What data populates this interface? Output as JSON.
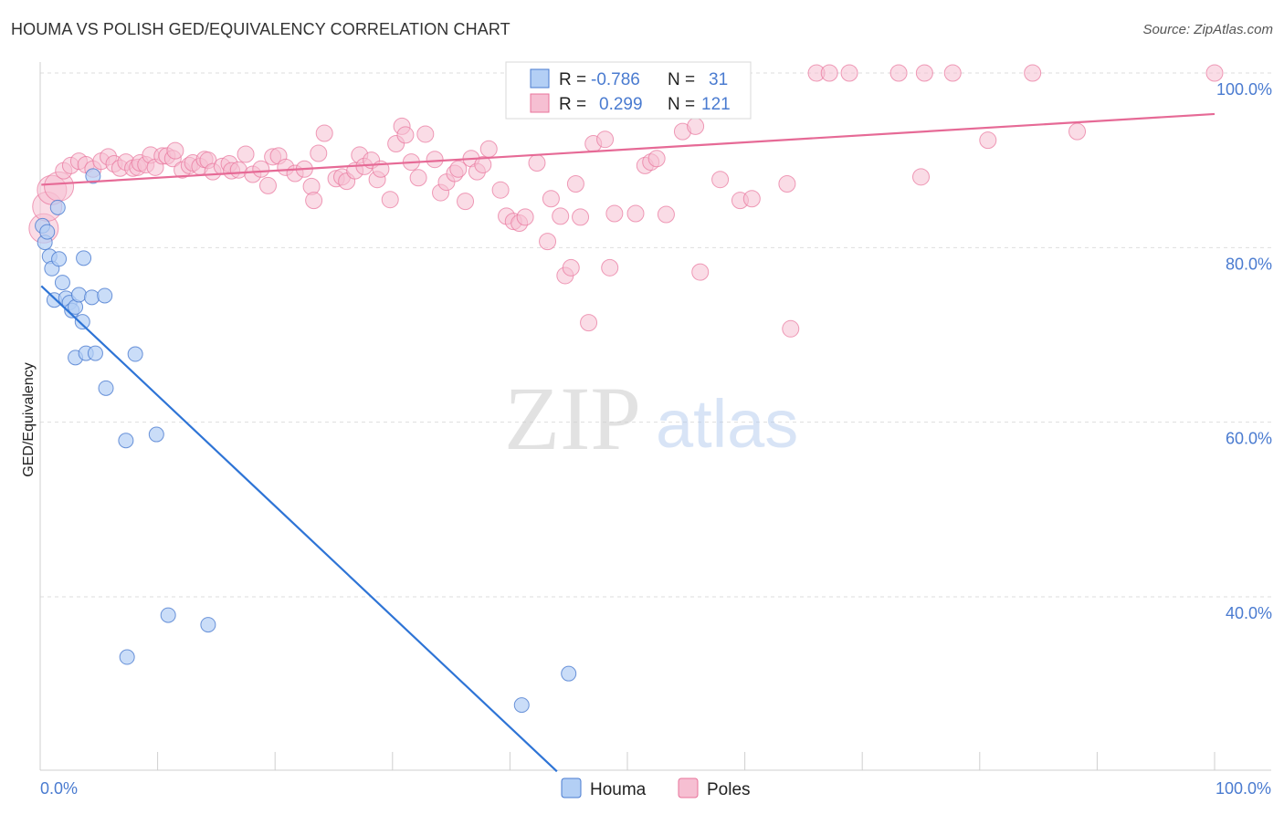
{
  "title": "HOUMA VS POLISH GED/EQUIVALENCY CORRELATION CHART",
  "source": "Source: ZipAtlas.com",
  "watermark": {
    "zip": "ZIP",
    "atlas": "atlas"
  },
  "colors": {
    "blue": "#4a7bd0",
    "blue_fill": "#b3cff5",
    "blue_line": "#2e74d6",
    "pink": "#e8739b",
    "pink_fill": "#f6bfd2",
    "pink_line": "#e66a96"
  },
  "legend_box": {
    "rows": [
      {
        "r_label": "R =",
        "r_value": "-0.786",
        "n_label": "N =",
        "n_value": "31"
      },
      {
        "r_label": "R =",
        "r_value": "0.299",
        "n_label": "N =",
        "n_value": "121"
      }
    ]
  },
  "bottom_legend": {
    "houma": "Houma",
    "poles": "Poles"
  },
  "chart_data": {
    "type": "scatter",
    "ylabel": "GED/Equivalency",
    "xlabel": "",
    "xlim": [
      0,
      100
    ],
    "ylim": [
      20,
      102
    ],
    "x_tick_labels": [
      "0.0%",
      "100.0%"
    ],
    "y_ticks": [
      {
        "value": 100,
        "label": "100.0%"
      },
      {
        "value": 80,
        "label": "80.0%"
      },
      {
        "value": 60,
        "label": "60.0%"
      },
      {
        "value": 40,
        "label": "40.0%"
      }
    ],
    "grid": "dashed horizontal",
    "legend_position": "top-center",
    "series": [
      {
        "name": "Houma",
        "color": "#4a7bd0",
        "trend": {
          "x": [
            0.1,
            44
          ],
          "y": [
            75.6,
            20
          ]
        },
        "points": [
          [
            0.2,
            82.5
          ],
          [
            0.4,
            80.6
          ],
          [
            0.6,
            81.8
          ],
          [
            0.8,
            79.0
          ],
          [
            1.0,
            77.6
          ],
          [
            1.2,
            74.0
          ],
          [
            1.5,
            84.6
          ],
          [
            1.6,
            78.7
          ],
          [
            1.9,
            76.0
          ],
          [
            2.2,
            74.2
          ],
          [
            2.5,
            73.7
          ],
          [
            2.7,
            72.8
          ],
          [
            3.0,
            73.2
          ],
          [
            3.3,
            74.6
          ],
          [
            3.6,
            71.5
          ],
          [
            3.7,
            78.8
          ],
          [
            3.0,
            67.4
          ],
          [
            3.9,
            67.9
          ],
          [
            4.4,
            74.3
          ],
          [
            4.5,
            88.2
          ],
          [
            4.7,
            67.9
          ],
          [
            5.5,
            74.5
          ],
          [
            5.6,
            63.9
          ],
          [
            7.3,
            57.9
          ],
          [
            8.1,
            67.8
          ],
          [
            9.9,
            58.6
          ],
          [
            10.9,
            37.9
          ],
          [
            7.4,
            33.1
          ],
          [
            14.3,
            36.8
          ],
          [
            41.0,
            27.6
          ],
          [
            45.0,
            31.2
          ]
        ]
      },
      {
        "name": "Poles",
        "color": "#e8739b",
        "trend": {
          "x": [
            0.1,
            100
          ],
          "y": [
            87.2,
            95.3
          ]
        },
        "points": [
          [
            0.3,
            82.2
          ],
          [
            0.6,
            84.7
          ],
          [
            1.0,
            86.6
          ],
          [
            1.6,
            87.0
          ],
          [
            2.0,
            88.8
          ],
          [
            2.6,
            89.4
          ],
          [
            3.3,
            89.9
          ],
          [
            3.9,
            89.5
          ],
          [
            4.5,
            89.0
          ],
          [
            5.2,
            89.9
          ],
          [
            5.8,
            90.4
          ],
          [
            6.3,
            89.6
          ],
          [
            6.8,
            89.1
          ],
          [
            7.3,
            89.8
          ],
          [
            7.9,
            89.1
          ],
          [
            8.3,
            89.2
          ],
          [
            8.5,
            89.7
          ],
          [
            9.0,
            89.5
          ],
          [
            9.4,
            90.6
          ],
          [
            9.8,
            89.2
          ],
          [
            10.4,
            90.5
          ],
          [
            10.8,
            90.5
          ],
          [
            11.3,
            90.2
          ],
          [
            11.5,
            91.1
          ],
          [
            12.1,
            88.9
          ],
          [
            12.7,
            89.4
          ],
          [
            13.0,
            89.7
          ],
          [
            13.6,
            89.3
          ],
          [
            14.0,
            90.1
          ],
          [
            14.3,
            90.0
          ],
          [
            14.7,
            88.7
          ],
          [
            15.5,
            89.3
          ],
          [
            16.1,
            89.6
          ],
          [
            16.3,
            88.8
          ],
          [
            16.9,
            88.9
          ],
          [
            17.5,
            90.7
          ],
          [
            18.1,
            88.4
          ],
          [
            18.8,
            89.0
          ],
          [
            19.4,
            87.1
          ],
          [
            19.8,
            90.4
          ],
          [
            20.3,
            90.5
          ],
          [
            20.9,
            89.2
          ],
          [
            21.7,
            88.5
          ],
          [
            22.5,
            89.0
          ],
          [
            23.1,
            87.0
          ],
          [
            23.3,
            85.4
          ],
          [
            23.7,
            90.8
          ],
          [
            24.2,
            93.1
          ],
          [
            25.2,
            87.9
          ],
          [
            25.7,
            88.1
          ],
          [
            26.1,
            87.6
          ],
          [
            26.8,
            88.8
          ],
          [
            27.2,
            90.6
          ],
          [
            27.6,
            89.3
          ],
          [
            28.2,
            90.0
          ],
          [
            28.7,
            87.8
          ],
          [
            29.0,
            89.0
          ],
          [
            29.8,
            85.5
          ],
          [
            30.3,
            91.9
          ],
          [
            30.8,
            93.9
          ],
          [
            31.1,
            92.9
          ],
          [
            31.6,
            89.8
          ],
          [
            32.2,
            88.0
          ],
          [
            32.8,
            93.0
          ],
          [
            33.6,
            90.1
          ],
          [
            34.1,
            86.3
          ],
          [
            34.6,
            87.5
          ],
          [
            35.3,
            88.5
          ],
          [
            35.6,
            89.0
          ],
          [
            36.2,
            85.3
          ],
          [
            36.7,
            90.2
          ],
          [
            37.2,
            88.7
          ],
          [
            37.7,
            89.5
          ],
          [
            38.2,
            91.3
          ],
          [
            39.2,
            86.6
          ],
          [
            39.7,
            83.6
          ],
          [
            40.3,
            83.0
          ],
          [
            40.8,
            82.8
          ],
          [
            41.3,
            83.5
          ],
          [
            42.3,
            89.7
          ],
          [
            42.7,
            99.0
          ],
          [
            43.2,
            80.7
          ],
          [
            43.5,
            85.6
          ],
          [
            44.1,
            99.9
          ],
          [
            44.3,
            83.6
          ],
          [
            44.7,
            76.8
          ],
          [
            45.2,
            77.7
          ],
          [
            45.6,
            87.3
          ],
          [
            46.0,
            83.5
          ],
          [
            46.7,
            71.4
          ],
          [
            47.1,
            91.9
          ],
          [
            48.1,
            92.4
          ],
          [
            48.5,
            77.7
          ],
          [
            48.9,
            83.9
          ],
          [
            49.3,
            99.9
          ],
          [
            50.7,
            83.9
          ],
          [
            51.5,
            89.4
          ],
          [
            52.0,
            89.8
          ],
          [
            52.5,
            90.2
          ],
          [
            53.3,
            83.8
          ],
          [
            54.7,
            93.3
          ],
          [
            55.8,
            93.9
          ],
          [
            56.2,
            77.2
          ],
          [
            57.7,
            100.0
          ],
          [
            57.9,
            87.8
          ],
          [
            59.6,
            85.4
          ],
          [
            60.6,
            85.6
          ],
          [
            63.6,
            87.3
          ],
          [
            63.9,
            70.7
          ],
          [
            66.1,
            100.0
          ],
          [
            67.2,
            100.0
          ],
          [
            68.9,
            100.0
          ],
          [
            73.1,
            100.0
          ],
          [
            75.0,
            88.1
          ],
          [
            75.3,
            100.0
          ],
          [
            77.7,
            100.0
          ],
          [
            80.7,
            92.3
          ],
          [
            84.5,
            100.0
          ],
          [
            88.3,
            93.3
          ],
          [
            100.0,
            100.0
          ]
        ]
      }
    ]
  }
}
